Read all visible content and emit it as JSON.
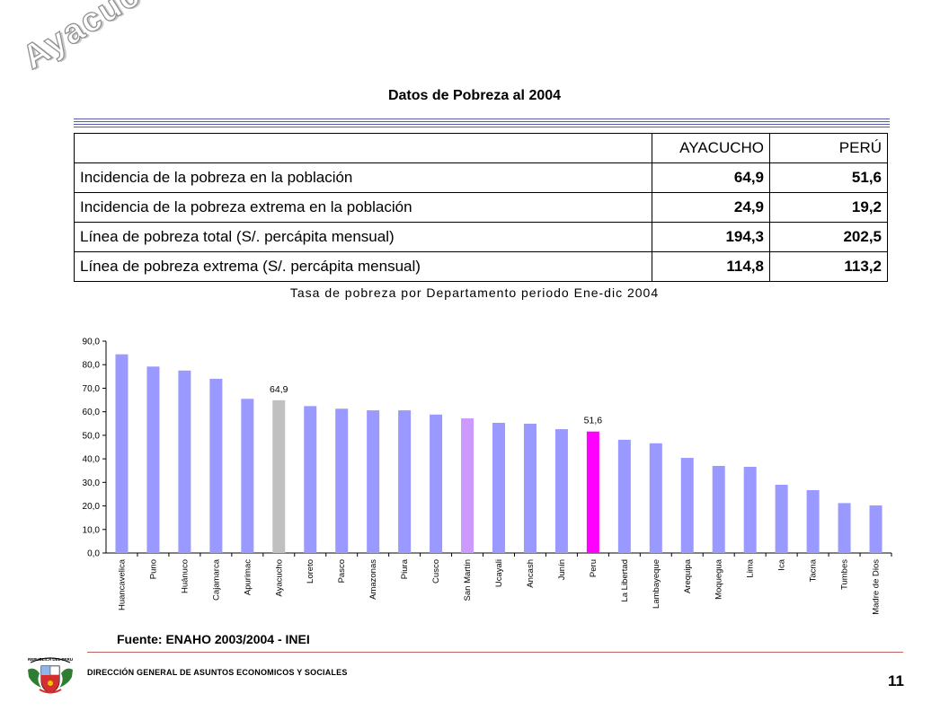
{
  "watermark": "Ayacucho",
  "slide_title": "Datos de Pobreza al 2004",
  "table": {
    "headers": [
      "",
      "AYACUCHO",
      "PERÚ"
    ],
    "rows": [
      {
        "label": "Incidencia de la pobreza en la población",
        "ayacucho": "64,9",
        "peru": "51,6"
      },
      {
        "label": "Incidencia de la pobreza extrema en la población",
        "ayacucho": "24,9",
        "peru": "19,2"
      },
      {
        "label": "Línea de pobreza total (S/. percápita mensual)",
        "ayacucho": "194,3",
        "peru": "202,5"
      },
      {
        "label": "Línea de pobreza extrema (S/. percápita mensual)",
        "ayacucho": "114,8",
        "peru": "113,2"
      }
    ]
  },
  "chart_data": {
    "type": "bar",
    "title": "Tasa de pobreza por Departamento periodo Ene-dic 2004",
    "xlabel": "",
    "ylabel": "",
    "ylim": [
      0,
      90
    ],
    "yticks": [
      "0,0",
      "10,0",
      "20,0",
      "30,0",
      "40,0",
      "50,0",
      "60,0",
      "70,0",
      "80,0",
      "90,0"
    ],
    "grid": false,
    "categories": [
      "Huancavelica",
      "Puno",
      "Huánuco",
      "Cajamarca",
      "Apurimac",
      "Ayacucho",
      "Loreto",
      "Pasco",
      "Amazonas",
      "Piura",
      "Cusco",
      "San Martín",
      "Ucayali",
      "Ancash",
      "Junín",
      "Peru",
      "La Libertad",
      "Lambayeque",
      "Arequipa",
      "Moquegua",
      "Lima",
      "Ica",
      "Tacna",
      "Tumbes",
      "Madre de Dios"
    ],
    "values": [
      84.4,
      79.2,
      77.5,
      74.0,
      65.5,
      64.9,
      62.4,
      61.3,
      60.6,
      60.6,
      58.8,
      57.2,
      55.3,
      54.9,
      52.6,
      51.6,
      48.1,
      46.6,
      40.4,
      37.0,
      36.6,
      29.0,
      26.7,
      21.2,
      20.2
    ],
    "colors": [
      "#9999ff",
      "#9999ff",
      "#9999ff",
      "#9999ff",
      "#9999ff",
      "#c0c0c0",
      "#9999ff",
      "#9999ff",
      "#9999ff",
      "#9999ff",
      "#9999ff",
      "#cc99ff",
      "#9999ff",
      "#9999ff",
      "#9999ff",
      "#ff00ff",
      "#9999ff",
      "#9999ff",
      "#9999ff",
      "#9999ff",
      "#9999ff",
      "#9999ff",
      "#9999ff",
      "#9999ff",
      "#9999ff"
    ],
    "data_labels": [
      {
        "category": "Ayacucho",
        "text": "64,9"
      },
      {
        "category": "Peru",
        "text": "51,6"
      }
    ]
  },
  "source": "Fuente: ENAHO 2003/2004 - INEI",
  "footer": "DIRECCIÓN GENERAL DE ASUNTOS ECONOMICOS Y SOCIALES",
  "page_number": "11",
  "crest": {
    "icon": "peru-coat-of-arms-icon",
    "text": "REPUBLICA DEL PERU"
  }
}
